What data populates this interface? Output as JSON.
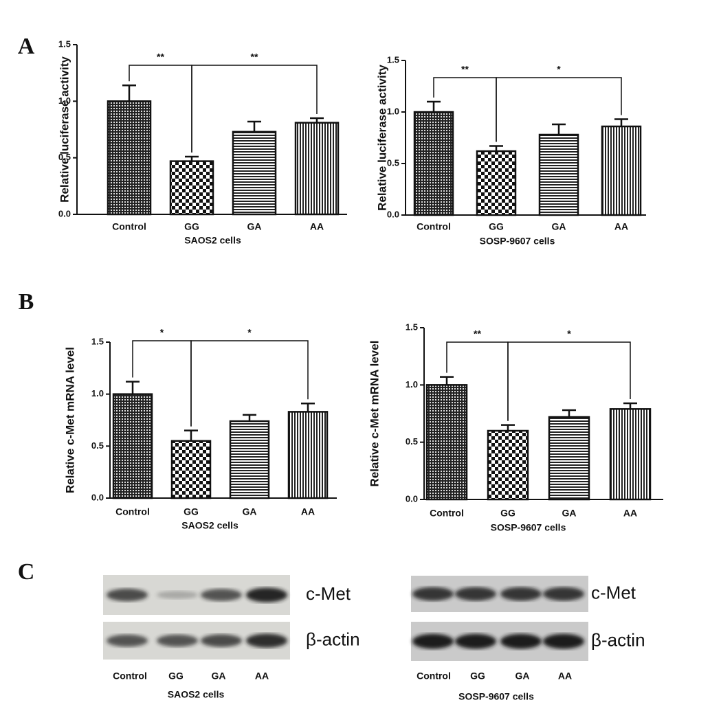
{
  "panels": [
    "A",
    "B",
    "C"
  ],
  "chart_data": [
    {
      "type": "bar",
      "categories": [
        "Control",
        "GG",
        "GA",
        "AA"
      ],
      "values": [
        1.0,
        0.47,
        0.73,
        0.81
      ],
      "errors": [
        0.14,
        0.04,
        0.09,
        0.04
      ],
      "patterns": [
        "crosshatch",
        "checker",
        "horizontal",
        "vertical"
      ],
      "xlabel": "SAOS2 cells",
      "ylabel": "Relative luciferase activity",
      "ylim": [
        0,
        1.5
      ],
      "yticks": [
        {
          "value": 0,
          "label": "0.0"
        },
        0.5,
        {
          "value": 1,
          "label": "1.0"
        },
        1.5
      ],
      "annotations": [
        {
          "label": "**",
          "between": [
            0,
            1
          ]
        },
        {
          "label": "**",
          "between": [
            1,
            3
          ]
        }
      ]
    },
    {
      "type": "bar",
      "categories": [
        "Control",
        "GG",
        "GA",
        "AA"
      ],
      "values": [
        1.0,
        0.62,
        0.78,
        0.86
      ],
      "errors": [
        0.1,
        0.05,
        0.1,
        0.07
      ],
      "patterns": [
        "crosshatch",
        "checker",
        "horizontal",
        "vertical"
      ],
      "xlabel": "SOSP-9607 cells",
      "ylabel": "Relative luciferase activity",
      "ylim": [
        0,
        1.5
      ],
      "yticks": [
        {
          "value": 0,
          "label": "0.0"
        },
        0.5,
        {
          "value": 1,
          "label": "1.0"
        },
        1.5
      ],
      "annotations": [
        {
          "label": "**",
          "between": [
            0,
            1
          ]
        },
        {
          "label": "*",
          "between": [
            1,
            3
          ]
        }
      ]
    },
    {
      "type": "bar",
      "categories": [
        "Control",
        "GG",
        "GA",
        "AA"
      ],
      "values": [
        1.0,
        0.55,
        0.74,
        0.83
      ],
      "errors": [
        0.12,
        0.1,
        0.06,
        0.08
      ],
      "patterns": [
        "crosshatch",
        "checker",
        "horizontal",
        "vertical"
      ],
      "xlabel": "SAOS2 cells",
      "ylabel": "Relative c-Met mRNA level",
      "ylim": [
        0,
        1.5
      ],
      "yticks": [
        {
          "value": 0,
          "label": "0.0"
        },
        0.5,
        {
          "value": 1,
          "label": "1.0"
        },
        1.5
      ],
      "annotations": [
        {
          "label": "*",
          "between": [
            0,
            1
          ]
        },
        {
          "label": "*",
          "between": [
            1,
            3
          ]
        }
      ]
    },
    {
      "type": "bar",
      "categories": [
        "Control",
        "GG",
        "GA",
        "AA"
      ],
      "values": [
        1.0,
        0.6,
        0.72,
        0.79
      ],
      "errors": [
        0.07,
        0.05,
        0.06,
        0.05
      ],
      "patterns": [
        "crosshatch",
        "checker",
        "horizontal",
        "vertical"
      ],
      "xlabel": "SOSP-9607 cells",
      "ylabel": "Relative c-Met mRNA level",
      "ylim": [
        0,
        1.5
      ],
      "yticks": [
        {
          "value": 0,
          "label": "0.0"
        },
        0.5,
        {
          "value": 1,
          "label": "1.0"
        },
        1.5
      ],
      "annotations": [
        {
          "label": "**",
          "between": [
            0,
            1
          ]
        },
        {
          "label": "*",
          "between": [
            1,
            3
          ]
        }
      ]
    }
  ],
  "blots": [
    {
      "rows": [
        "c-Met",
        "β-actin"
      ],
      "lanes": [
        "Control",
        "GG",
        "GA",
        "AA"
      ],
      "caption": "SAOS2 cells"
    },
    {
      "rows": [
        "c-Met",
        "β-actin"
      ],
      "lanes": [
        "Control",
        "GG",
        "GA",
        "AA"
      ],
      "caption": "SOSP-9607 cells"
    }
  ]
}
